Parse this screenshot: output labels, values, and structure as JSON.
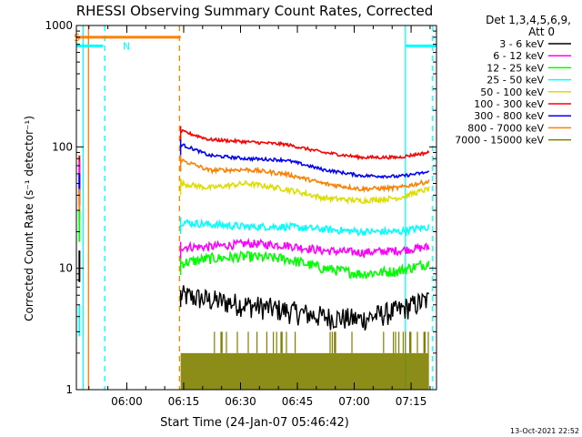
{
  "chart_data": {
    "type": "line",
    "title": "RHESSI Observing Summary Count Rates, Corrected",
    "xlabel": "Start Time (24-Jan-07 05:46:42)",
    "ylabel": "Corrected Count Rate (s⁻¹ detector⁻¹)",
    "yscale": "log",
    "ylim": [
      1,
      1000
    ],
    "xlim_minutes": [
      0,
      95
    ],
    "x_unit": "minutes since 05:46:42",
    "x_ticks": [
      {
        "label": "06:00",
        "value": 13.3
      },
      {
        "label": "06:15",
        "value": 28.3
      },
      {
        "label": "06:30",
        "value": 43.3
      },
      {
        "label": "06:45",
        "value": 58.3
      },
      {
        "label": "07:00",
        "value": 73.3
      },
      {
        "label": "07:15",
        "value": 88.3
      }
    ],
    "y_ticks": [
      {
        "label": "1",
        "value": 1
      },
      {
        "label": "10",
        "value": 10
      },
      {
        "label": "100",
        "value": 100
      },
      {
        "label": "1000",
        "value": 1000
      }
    ],
    "legend": {
      "header": [
        "Det 1,3,4,5,6,9,",
        "Att 0"
      ],
      "placement": "right"
    },
    "series": [
      {
        "name": "3 - 6 keV",
        "color": "#000000",
        "x": [
          27.5,
          35,
          45,
          55,
          65,
          75,
          85,
          93
        ],
        "values": [
          6,
          5.5,
          5,
          4.5,
          4,
          3.8,
          4.5,
          5.5
        ]
      },
      {
        "name": "6 - 12 keV",
        "color": "#ff00ff",
        "x": [
          27.5,
          35,
          45,
          55,
          65,
          75,
          85,
          93
        ],
        "values": [
          15,
          15,
          16,
          15.5,
          14,
          13.5,
          14,
          15
        ]
      },
      {
        "name": "12 - 25 keV",
        "color": "#00ff00",
        "x": [
          27.5,
          35,
          45,
          55,
          65,
          75,
          85,
          93
        ],
        "values": [
          11,
          12,
          12.5,
          12,
          10,
          9,
          9.5,
          11
        ]
      },
      {
        "name": "25 - 50 keV",
        "color": "#00ffff",
        "x": [
          27.5,
          35,
          45,
          55,
          65,
          75,
          85,
          93
        ],
        "values": [
          24,
          23,
          22,
          22,
          21,
          20,
          20,
          22
        ]
      },
      {
        "name": "50 - 100 keV",
        "color": "#dddd00",
        "x": [
          27.5,
          35,
          45,
          55,
          65,
          75,
          85,
          93
        ],
        "values": [
          50,
          46,
          50,
          45,
          38,
          36,
          38,
          45
        ]
      },
      {
        "name": "100 - 300 keV",
        "color": "#ff0000",
        "x": [
          27.5,
          35,
          45,
          55,
          65,
          75,
          85,
          93
        ],
        "values": [
          135,
          115,
          110,
          105,
          90,
          82,
          82,
          90
        ]
      },
      {
        "name": "300 - 800 keV",
        "color": "#0000ff",
        "x": [
          27.5,
          35,
          45,
          55,
          65,
          75,
          85,
          93
        ],
        "values": [
          105,
          85,
          80,
          78,
          65,
          58,
          57,
          62
        ]
      },
      {
        "name": "800 - 7000 keV",
        "color": "#ff8000",
        "x": [
          27.5,
          35,
          45,
          55,
          65,
          75,
          85,
          93
        ],
        "values": [
          78,
          64,
          65,
          60,
          50,
          45,
          46,
          52
        ]
      },
      {
        "name": "7000 - 15000 keV",
        "color": "#808000",
        "x": [
          27.5,
          35,
          45,
          55,
          65,
          75,
          85,
          93
        ],
        "values": [
          2,
          2,
          2.5,
          2,
          2,
          2,
          2,
          2.5
        ]
      }
    ],
    "flag_bars": [
      {
        "label": "S",
        "color": "#ff8000",
        "x_start": 0,
        "x_end": 27.5,
        "y": 800
      },
      {
        "label": "N",
        "color": "#00ffff",
        "x_start": 0,
        "x_end": 7,
        "y": 680
      },
      {
        "label": "",
        "color": "#00ffff",
        "x_start": 87,
        "x_end": 95,
        "y": 680
      }
    ],
    "vertical_markers": [
      {
        "x": 1.8,
        "color": "#00ffff",
        "style": "solid"
      },
      {
        "x": 3.2,
        "color": "#ff8000",
        "style": "solid"
      },
      {
        "x": 7.5,
        "color": "#00ffff",
        "style": "dashed"
      },
      {
        "x": 27.2,
        "color": "#ff8000",
        "style": "dashed"
      },
      {
        "x": 86.8,
        "color": "#00ffff",
        "style": "solid"
      },
      {
        "x": 94.0,
        "color": "#00ffff",
        "style": "dashed"
      }
    ]
  },
  "footer": {
    "timestamp": "13-Oct-2021 22:52"
  }
}
